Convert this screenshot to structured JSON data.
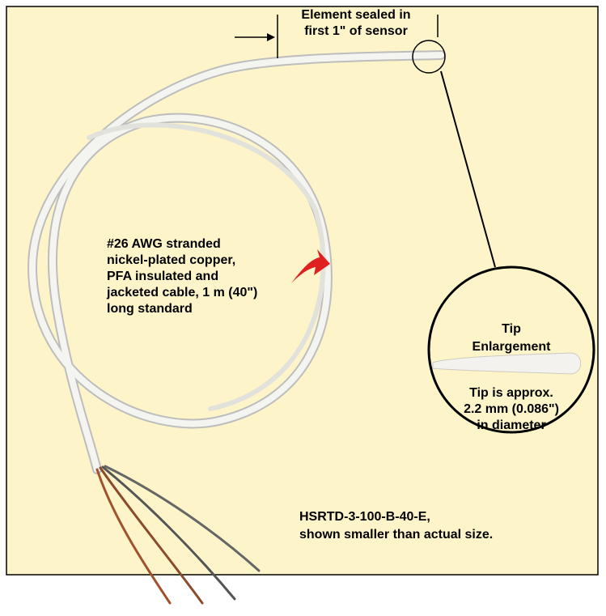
{
  "labels": {
    "element_sealed": [
      "Element sealed in",
      "first 1\" of sensor"
    ],
    "cable": [
      "#26 AWG stranded",
      "nickel-plated copper,",
      "PFA insulated and",
      "jacketed cable, 1 m (40\")",
      "long standard"
    ],
    "tip_title": [
      "Tip",
      "Enlargement"
    ],
    "tip_size": [
      "Tip is approx.",
      "2.2 mm (0.086\")",
      "in diameter"
    ],
    "model": [
      "HSRTD-3-100-B-40-E,",
      "shown smaller than actual size."
    ]
  }
}
